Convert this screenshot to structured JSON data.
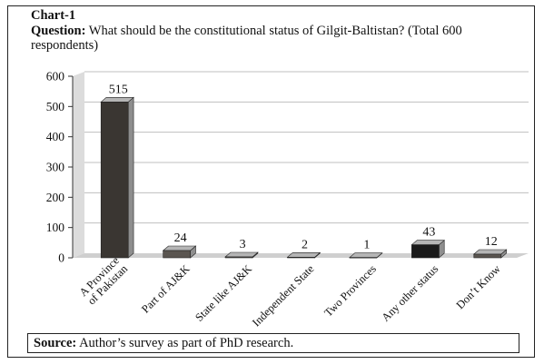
{
  "heading": {
    "chart_label": "Chart-1",
    "question_label": "Question:",
    "question_text": " What should be the constitutional status of Gilgit-Baltistan? (Total 600 respondents)"
  },
  "source": {
    "label": "Source:",
    "text": " Author’s survey as part of PhD research."
  },
  "colors": {
    "bar_dark": "#3a3632",
    "bar_mid": "#5a5550",
    "bar_black": "#1a1a1a",
    "grid": "#bfbfbf",
    "wall": "#dcdcdc"
  },
  "chart_data": {
    "type": "bar",
    "title": "Chart-1",
    "categories": [
      [
        "A Province",
        "of Pakistan"
      ],
      [
        "Part of AJ&K"
      ],
      [
        "State like AJ&K"
      ],
      [
        "Independent State"
      ],
      [
        "Two Provinces"
      ],
      [
        "Any other status"
      ],
      [
        "Don’t Know"
      ]
    ],
    "values": [
      515,
      24,
      3,
      2,
      1,
      43,
      12
    ],
    "data_labels": [
      "515",
      "24",
      "3",
      "2",
      "1",
      "43",
      "12"
    ],
    "ylim": [
      0,
      600
    ],
    "yticks": [
      0,
      100,
      200,
      300,
      400,
      500,
      600
    ],
    "grid": true,
    "legend": "none"
  }
}
